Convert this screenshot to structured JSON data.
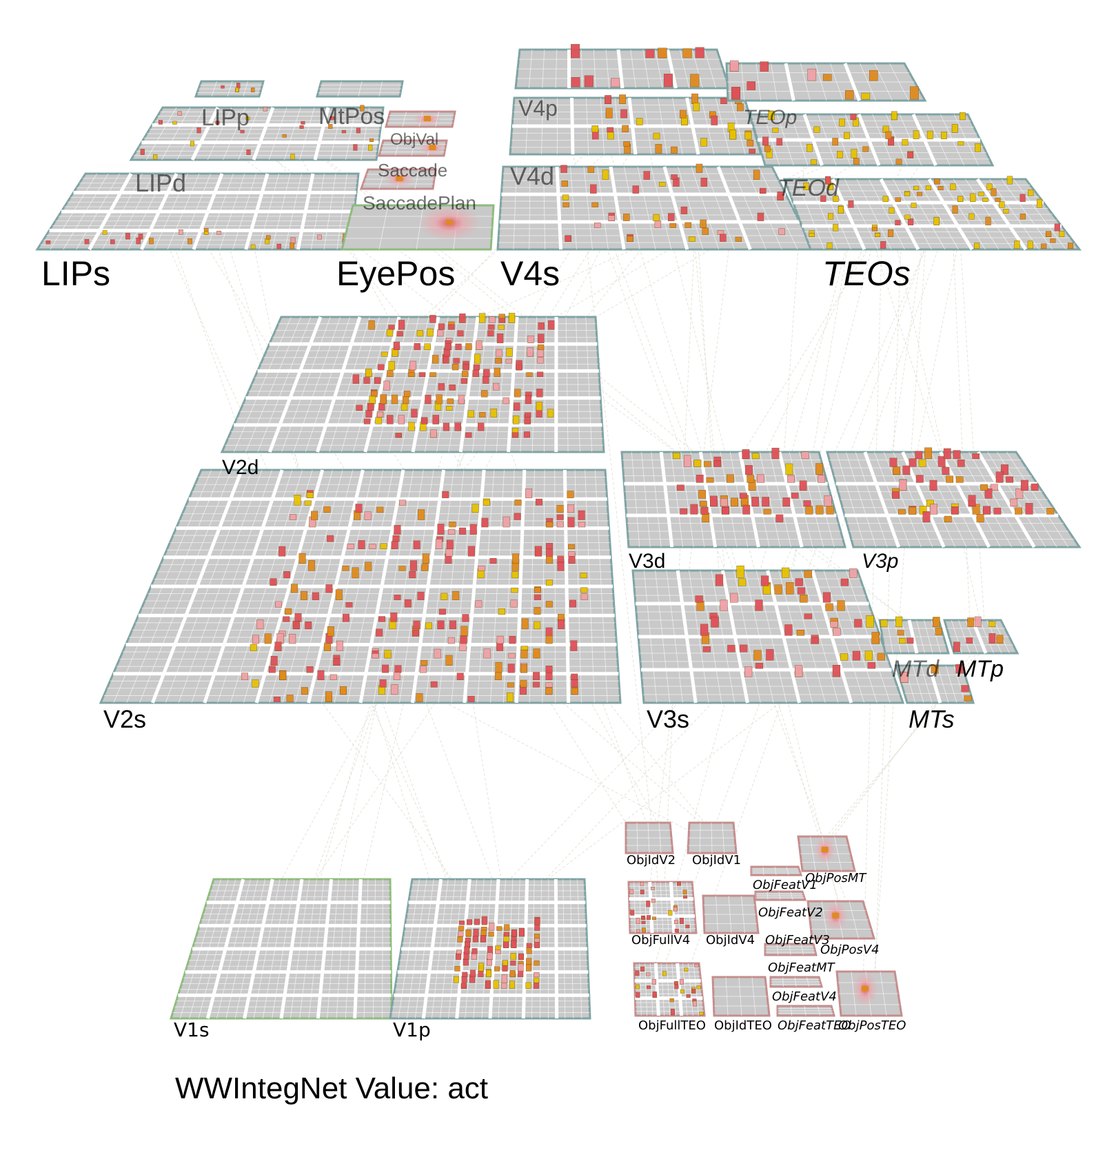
{
  "title": "WWIntegNet Value: act",
  "groups": {
    "lips": "LIPs",
    "eyepos": "EyePos",
    "v4s": "V4s",
    "teos": "TEOs",
    "v2s": "V2s",
    "v3s": "V3s",
    "mts": "MTs"
  },
  "layers": {
    "lipp": "LIPp",
    "mtpos": "MtPos",
    "lipd": "LIPd",
    "objval": "ObjVal",
    "saccade": "Saccade",
    "saccadeplan": "SaccadePlan",
    "v4p": "V4p",
    "v4d": "V4d",
    "teop": "TEOp",
    "teod": "TEOd",
    "v2d": "V2d",
    "v3d": "V3d",
    "v3p": "V3p",
    "mtd": "MTd",
    "mtp": "MTp",
    "v1s": "V1s",
    "v1p": "V1p",
    "objidv2": "ObjIdV2",
    "objidv1": "ObjIdV1",
    "objposmt": "ObjPosMT",
    "objfeatv1": "ObjFeatV1",
    "objfeatv2": "ObjFeatV2",
    "objfullv4": "ObjFullV4",
    "objidv4": "ObjIdV4",
    "objfeatv3": "ObjFeatV3",
    "objposv4": "ObjPosV4",
    "objfeatmt": "ObjFeatMT",
    "objfeatv4": "ObjFeatV4",
    "objfullteo": "ObjFullTEO",
    "objidteo": "ObjIdTEO",
    "objfeatteo": "ObjFeatTEO",
    "objposteo": "ObjPosTEO"
  },
  "colors": {
    "grid_bg": "#c9c9c9",
    "grid_line": "#ffffff",
    "border_hidden": "#7fa3a3",
    "border_input": "#8dbb7d",
    "border_target": "#c58d8d",
    "unit_yellow": "#e6c200",
    "unit_orange": "#e08a1e",
    "unit_red": "#e0505a",
    "unit_pink": "#f0a0a8",
    "proj_line": "#d8d8c8"
  }
}
